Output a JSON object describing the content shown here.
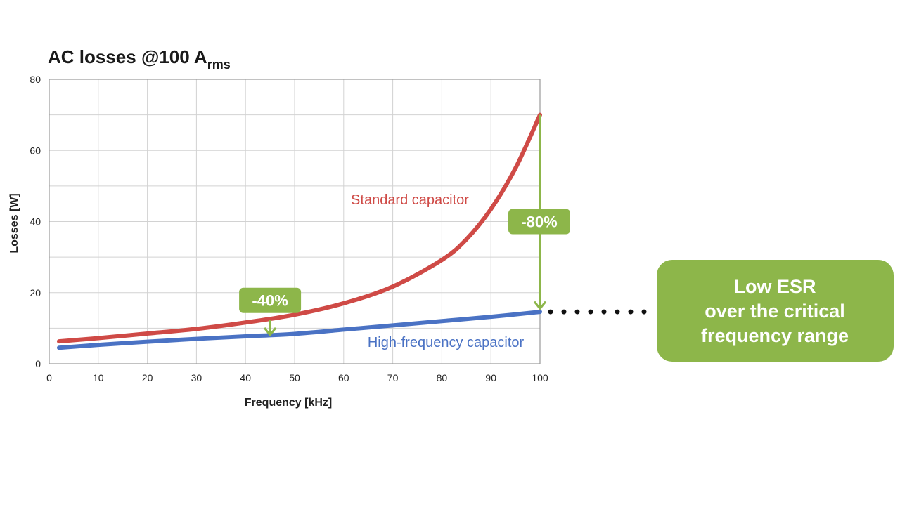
{
  "chart_data": {
    "type": "line",
    "title": "AC losses @100 A",
    "title_subscript": "rms",
    "xlabel": "Frequency [kHz]",
    "ylabel": "Losses [W]",
    "xlim": [
      0,
      100
    ],
    "ylim": [
      0,
      80
    ],
    "xticks": [
      0,
      10,
      20,
      30,
      40,
      50,
      60,
      70,
      80,
      90,
      100
    ],
    "yticks": [
      0,
      20,
      40,
      60,
      80
    ],
    "grid": true,
    "series": [
      {
        "name": "Standard capacitor",
        "color": "#cf4a46",
        "x": [
          2,
          10,
          20,
          30,
          40,
          50,
          60,
          70,
          80,
          85,
          90,
          95,
          100
        ],
        "y": [
          6.3,
          7.2,
          8.5,
          9.8,
          11.6,
          13.8,
          17.0,
          21.7,
          29.2,
          35.0,
          43.5,
          55.0,
          70.0
        ]
      },
      {
        "name": "High-frequency capacitor",
        "color": "#4a72c4",
        "x": [
          2,
          10,
          20,
          30,
          40,
          50,
          60,
          70,
          80,
          90,
          100
        ],
        "y": [
          4.5,
          5.3,
          6.2,
          7.0,
          7.7,
          8.4,
          9.6,
          10.8,
          12.0,
          13.2,
          14.6
        ]
      }
    ],
    "annotations": [
      {
        "label": "-40%",
        "x": 45,
        "y_from": 12.3,
        "y_to": 8.1,
        "color": "#8db64a"
      },
      {
        "label": "-80%",
        "x": 100,
        "y_from": 70.0,
        "y_to": 15.5,
        "color": "#8db64a"
      }
    ],
    "callout": {
      "lines": [
        "Low ESR",
        "over the critical",
        "frequency range"
      ],
      "color": "#8db64a"
    }
  }
}
